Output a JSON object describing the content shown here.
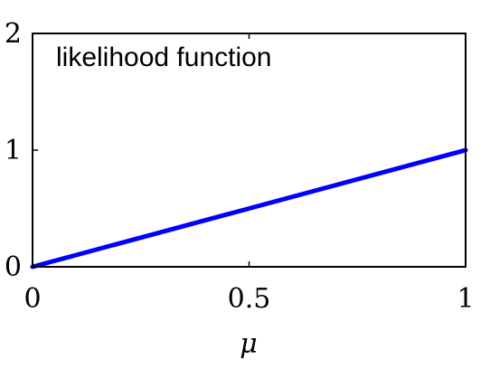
{
  "chart_data": {
    "type": "line",
    "xlabel": "μ",
    "ylabel": "",
    "xlim": [
      0,
      1
    ],
    "ylim": [
      0,
      2
    ],
    "xticks": [
      0,
      0.5,
      1
    ],
    "xtick_labels": [
      "0",
      "0.5",
      "1"
    ],
    "yticks": [
      0,
      1,
      2
    ],
    "ytick_labels": [
      "0",
      "1",
      "2"
    ],
    "grid": false,
    "annotation": "likelihood function",
    "series": [
      {
        "color": "#0000ff",
        "x": [
          0,
          1
        ],
        "y": [
          0,
          1
        ]
      }
    ]
  }
}
